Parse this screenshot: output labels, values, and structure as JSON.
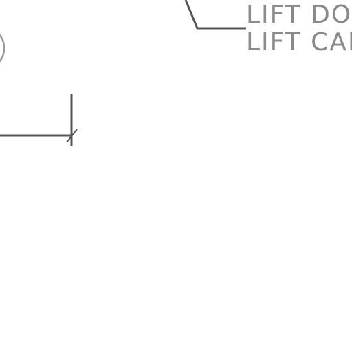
{
  "drawing": {
    "labels": [
      "LIFT DOOR",
      "LIFT CAR"
    ],
    "colors": {
      "background": "#ffffff",
      "linework": "#555555",
      "text": "#8a8a8a",
      "circle": "#999999"
    }
  }
}
